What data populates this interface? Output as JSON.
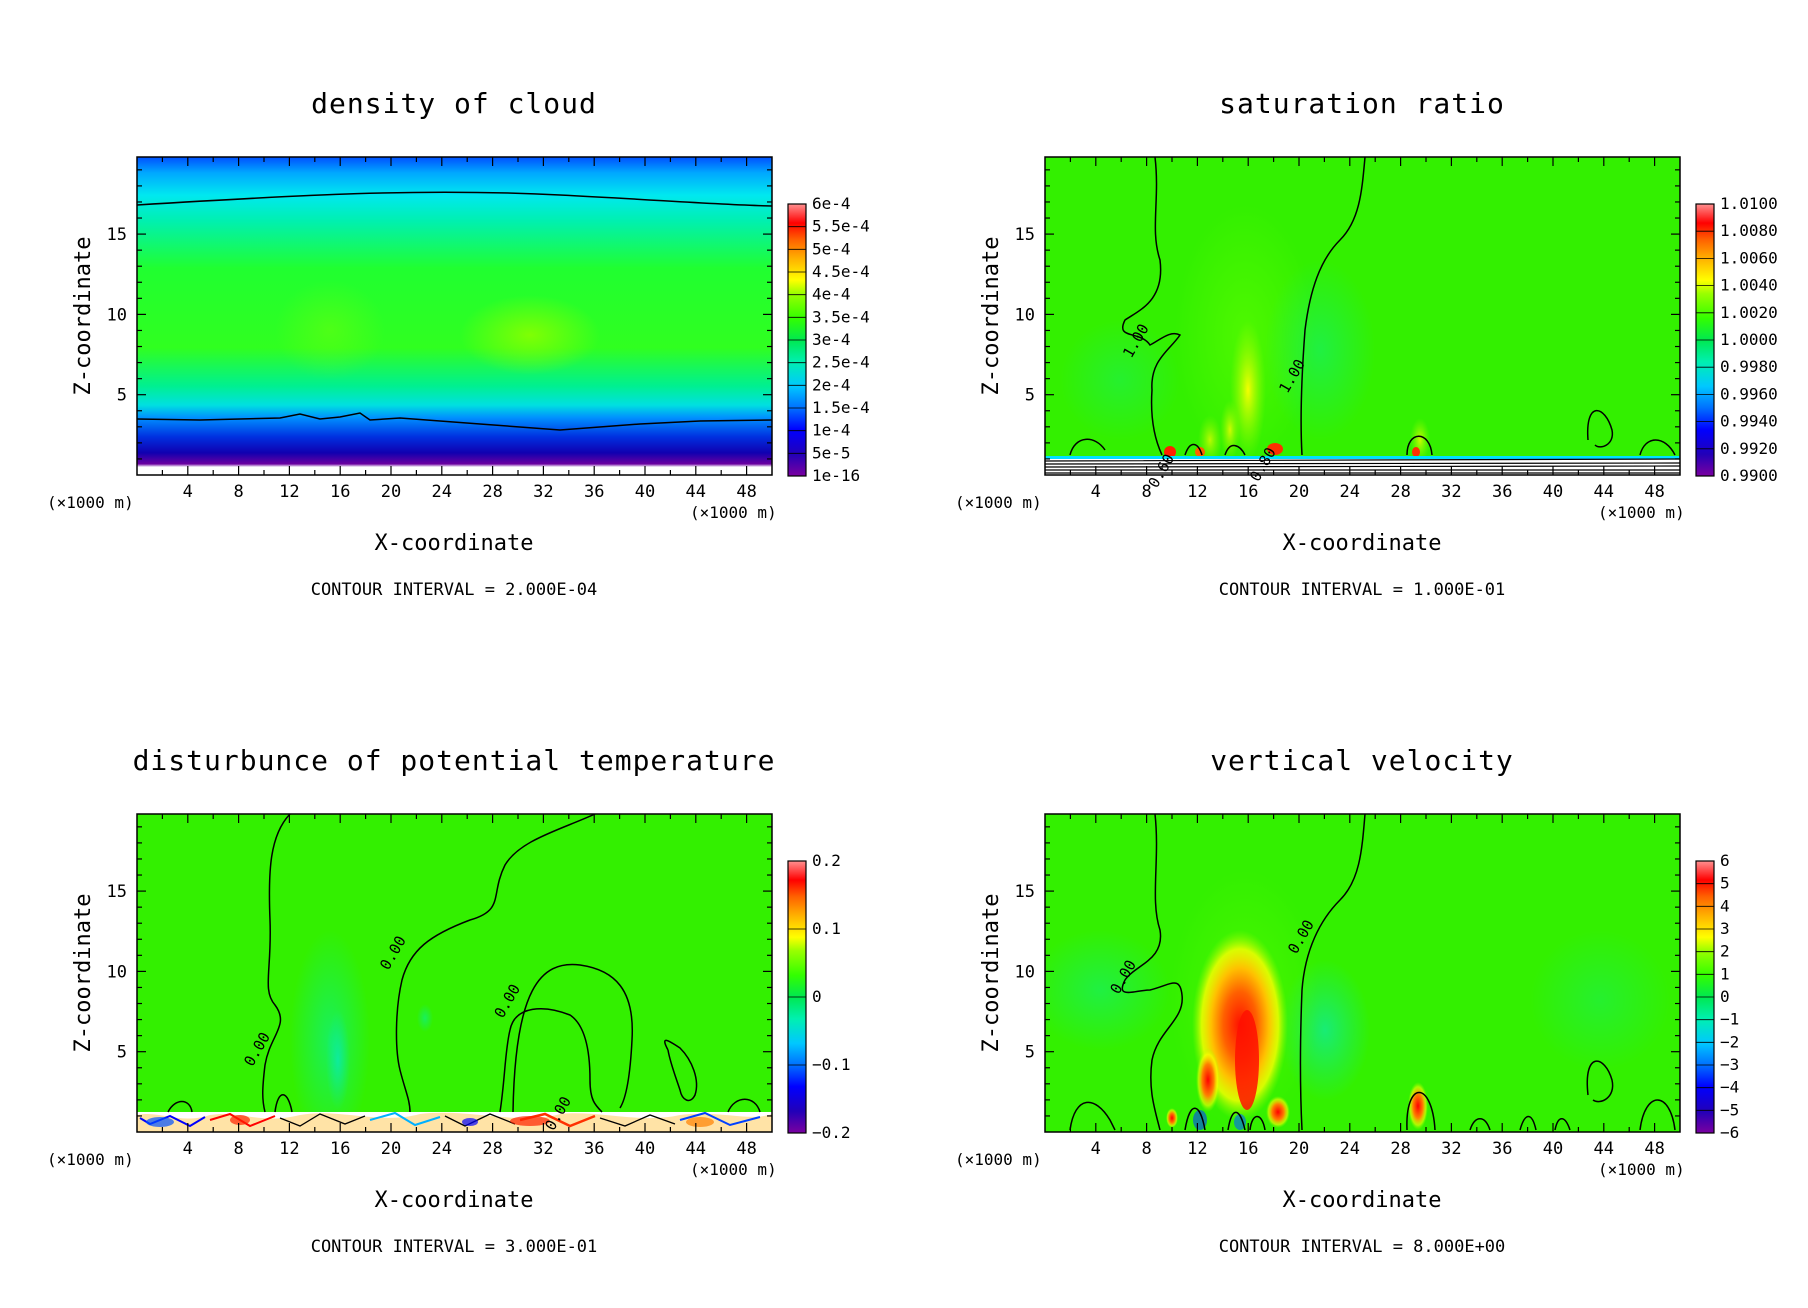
{
  "colors": {
    "frame": "#000000",
    "contour": "#000000",
    "background": "#ffffff",
    "colormap": [
      "#7a00a0",
      "#2200b8",
      "#0000ff",
      "#0070ff",
      "#00c8ff",
      "#00f0d0",
      "#00e880",
      "#33ff00",
      "#99ff00",
      "#ffff00",
      "#ffb000",
      "#ff6000",
      "#ff0000",
      "#ff8080"
    ]
  },
  "chart_data": [
    {
      "type": "contour",
      "title": "density of cloud",
      "xlabel": "X-coordinate",
      "ylabel": "Z-coordinate",
      "x_unit_left": "(×1000 m)",
      "x_unit_right": "(×1000 m)",
      "x_ticks": [
        "4",
        "8",
        "12",
        "16",
        "20",
        "24",
        "28",
        "32",
        "36",
        "40",
        "44",
        "48"
      ],
      "y_ticks": [
        "5",
        "10",
        "15"
      ],
      "xlim": [
        0,
        50
      ],
      "ylim": [
        0,
        19.8
      ],
      "colorbar_labels": [
        "1e-16",
        "5e-5",
        "1e-4",
        "1.5e-4",
        "2e-4",
        "2.5e-4",
        "3e-4",
        "3.5e-4",
        "4e-4",
        "4.5e-4",
        "5e-4",
        "5.5e-4",
        "6e-4"
      ],
      "contour_interval": "CONTOUR INTERVAL = 2.000E-04",
      "contour_labels": []
    },
    {
      "type": "contour",
      "title": "saturation ratio",
      "xlabel": "X-coordinate",
      "ylabel": "Z-coordinate",
      "x_unit_left": "(×1000 m)",
      "x_unit_right": "(×1000 m)",
      "x_ticks": [
        "4",
        "8",
        "12",
        "16",
        "20",
        "24",
        "28",
        "32",
        "36",
        "40",
        "44",
        "48"
      ],
      "y_ticks": [
        "5",
        "10",
        "15"
      ],
      "xlim": [
        0,
        50
      ],
      "ylim": [
        0,
        19.8
      ],
      "colorbar_labels": [
        "0.9900",
        "0.9920",
        "0.9940",
        "0.9960",
        "0.9980",
        "1.0000",
        "1.0020",
        "1.0040",
        "1.0060",
        "1.0080",
        "1.0100"
      ],
      "contour_interval": "CONTOUR INTERVAL = 1.000E-01",
      "contour_labels": [
        {
          "text": "1.00",
          "x": 7.5,
          "y": 8.2
        },
        {
          "text": "1.00",
          "x": 19.8,
          "y": 6.0
        },
        {
          "text": "0.60",
          "x": 9.5,
          "y": 0.1
        },
        {
          "text": "0.80",
          "x": 17.5,
          "y": 0.5
        }
      ]
    },
    {
      "type": "contour",
      "title": "disturbunce of potential temperature",
      "xlabel": "X-coordinate",
      "ylabel": "Z-coordinate",
      "x_unit_left": "(×1000 m)",
      "x_unit_right": "(×1000 m)",
      "x_ticks": [
        "4",
        "8",
        "12",
        "16",
        "20",
        "24",
        "28",
        "32",
        "36",
        "40",
        "44",
        "48"
      ],
      "y_ticks": [
        "5",
        "10",
        "15"
      ],
      "xlim": [
        0,
        50
      ],
      "ylim": [
        0,
        19.8
      ],
      "colorbar_labels": [
        "0.2",
        "0.1",
        "0",
        "−0.1",
        "−0.2"
      ],
      "contour_interval": "CONTOUR INTERVAL = 3.000E-01",
      "contour_labels": [
        {
          "text": "0.00",
          "x": 9.8,
          "y": 5.0
        },
        {
          "text": "0.00",
          "x": 20.5,
          "y": 11.0
        },
        {
          "text": "0.00",
          "x": 29.5,
          "y": 8.0
        },
        {
          "text": "0.00",
          "x": 33.5,
          "y": 1.0
        }
      ]
    },
    {
      "type": "contour",
      "title": "vertical velocity",
      "xlabel": "X-coordinate",
      "ylabel": "Z-coordinate",
      "x_unit_left": "(×1000 m)",
      "x_unit_right": "(×1000 m)",
      "x_ticks": [
        "4",
        "8",
        "12",
        "16",
        "20",
        "24",
        "28",
        "32",
        "36",
        "40",
        "44",
        "48"
      ],
      "y_ticks": [
        "5",
        "10",
        "15"
      ],
      "xlim": [
        0,
        50
      ],
      "ylim": [
        0,
        19.8
      ],
      "colorbar_labels": [
        "6",
        "5",
        "4",
        "3",
        "2",
        "1",
        "0",
        "−1",
        "−2",
        "−3",
        "−4",
        "−5",
        "−6"
      ],
      "contour_interval": "CONTOUR INTERVAL = 8.000E+00",
      "contour_labels": [
        {
          "text": "0.00",
          "x": 6.5,
          "y": 9.5
        },
        {
          "text": "0.00",
          "x": 20.5,
          "y": 12.0
        }
      ]
    }
  ]
}
